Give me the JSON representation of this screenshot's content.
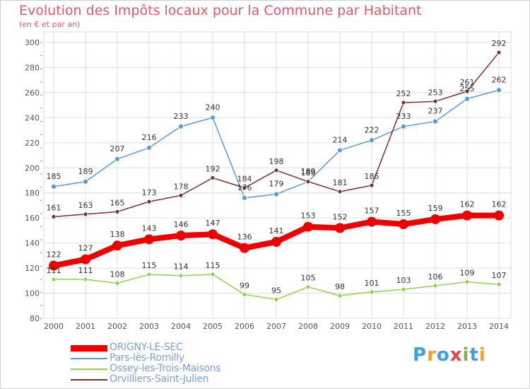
{
  "header": {
    "title": "Evolution des Impôts locaux pour la Commune par Habitant",
    "subtitle": "(en € et par an)"
  },
  "logo": {
    "letters": [
      "P",
      "r",
      "o",
      "x",
      "i",
      "t",
      "i"
    ],
    "colors": [
      "#3aa0de",
      "#f0a030",
      "#3aa0de",
      "#e04545",
      "#7ab648",
      "#3aa0de",
      "#f0a030"
    ]
  },
  "chart_data": {
    "type": "line",
    "x": [
      "2000",
      "2001",
      "2002",
      "2003",
      "2004",
      "2005",
      "2006",
      "2007",
      "2008",
      "2009",
      "2010",
      "2011",
      "2012",
      "2013",
      "2014"
    ],
    "ylim": [
      80,
      300
    ],
    "yticks": [
      80,
      100,
      120,
      140,
      160,
      180,
      200,
      220,
      240,
      260,
      280,
      300
    ],
    "grid": true,
    "legend_position": "bottom-left",
    "series": [
      {
        "name": "ORIGNY-LE-SEC",
        "color": "#ee0000",
        "values": [
          122,
          127,
          138,
          143,
          146,
          147,
          136,
          141,
          153,
          152,
          157,
          155,
          159,
          162,
          162
        ]
      },
      {
        "name": "Pars-lès-Romilly",
        "color": "#5b9bd5",
        "values": [
          185,
          189,
          207,
          216,
          233,
          240,
          176,
          179,
          189,
          214,
          222,
          233,
          237,
          255,
          262
        ]
      },
      {
        "name": "Ossey-les-Trois-Maisons",
        "color": "#92d050",
        "values": [
          111,
          111,
          108,
          115,
          114,
          115,
          99,
          95,
          105,
          98,
          101,
          103,
          106,
          109,
          107
        ]
      },
      {
        "name": "Orvilliers-Saint-Julien",
        "color": "#7b2f2f",
        "values": [
          161,
          163,
          165,
          173,
          178,
          192,
          184,
          198,
          189,
          181,
          186,
          252,
          253,
          261,
          292
        ]
      }
    ]
  }
}
